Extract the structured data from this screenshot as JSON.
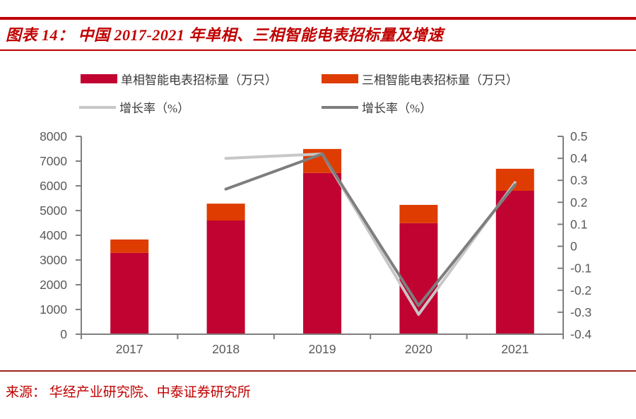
{
  "header": {
    "title": "图表 14： 中国 2017-2021 年单相、三相智能电表招标量及增速"
  },
  "footer": {
    "source": "来源： 华经产业研究院、中泰证券研究所"
  },
  "colors": {
    "brand_red": "#C00000",
    "footer_rule_red": "#9E2222",
    "axis_gray": "#7F7F7F",
    "tick_text_gray": "#595959",
    "single_phase_bar": "#C10332",
    "three_phase_bar": "#DE3C00",
    "single_phase_growth_line": "#C7C7C7",
    "three_phase_growth_line": "#7E7E7E"
  },
  "chart_data": {
    "type": "bar",
    "subtype": "stacked-bar-with-lines-combo",
    "title": "中国 2017-2021 年单相、三相智能电表招标量及增速",
    "categories": [
      "2017",
      "2018",
      "2019",
      "2020",
      "2021"
    ],
    "bar_series": [
      {
        "name": "单相智能电表招标量（万只）",
        "color": "#C10332",
        "values": [
          3290,
          4600,
          6520,
          4490,
          5800
        ]
      },
      {
        "name": "三相智能电表招标量（万只）",
        "color": "#DE3C00",
        "values": [
          540,
          680,
          970,
          740,
          890
        ]
      }
    ],
    "line_series": [
      {
        "name": "增长率（%）",
        "color": "#C7C7C7",
        "axis": "right",
        "x": [
          "2018",
          "2019",
          "2020",
          "2021"
        ],
        "values": [
          0.4,
          0.42,
          -0.31,
          0.29
        ]
      },
      {
        "name": "增长率（%）",
        "color": "#7E7E7E",
        "axis": "right",
        "x": [
          "2018",
          "2019",
          "2020",
          "2021"
        ],
        "values": [
          0.26,
          0.42,
          -0.27,
          0.28
        ]
      }
    ],
    "left_axis": {
      "min": 0,
      "max": 8000,
      "step": 1000,
      "tick_labels": [
        "8000",
        "7000",
        "6000",
        "5000",
        "4000",
        "3000",
        "2000",
        "1000",
        "0"
      ]
    },
    "right_axis": {
      "min": -0.4,
      "max": 0.5,
      "step": 0.1,
      "tick_labels": [
        "0.5",
        "0.4",
        "0.3",
        "0.2",
        "0.1",
        "0",
        "-0.1",
        "-0.2",
        "-0.3",
        "-0.4"
      ]
    },
    "grid": false,
    "legend_position": "top"
  }
}
